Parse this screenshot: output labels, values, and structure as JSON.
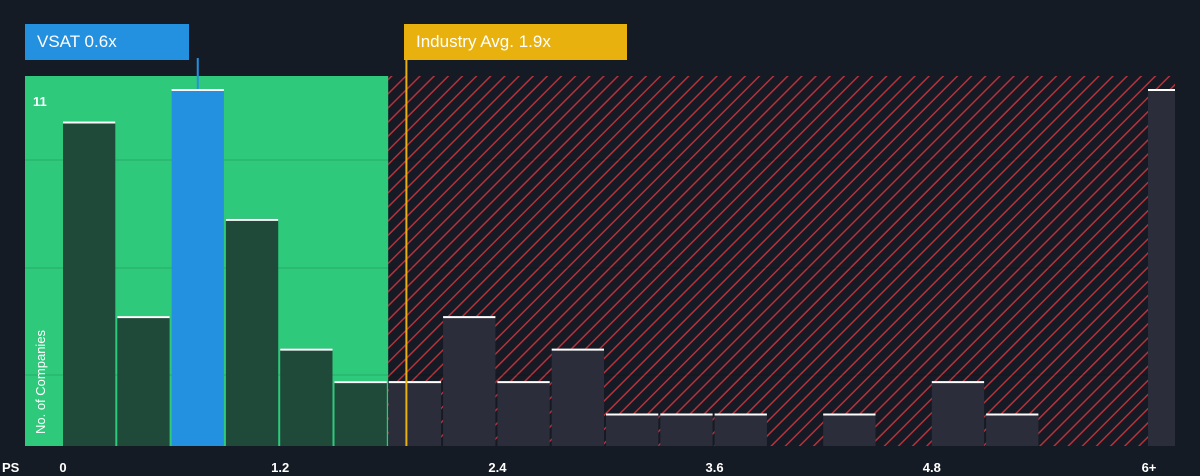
{
  "chart_data": {
    "type": "bar",
    "x_axis_prefix": "PS",
    "x_ticks": [
      "0",
      "1.2",
      "2.4",
      "3.6",
      "4.8",
      "6+"
    ],
    "x_tick_values": [
      0,
      1.2,
      2.4,
      3.6,
      4.8,
      6
    ],
    "ylabel": "No. of Companies",
    "y_max_label": "11",
    "ylim": [
      0,
      11
    ],
    "bin_width": 0.3,
    "bins": [
      {
        "x_start": 0.0,
        "value": 10,
        "highlight": false
      },
      {
        "x_start": 0.3,
        "value": 4,
        "highlight": false
      },
      {
        "x_start": 0.6,
        "value": 11,
        "highlight": true
      },
      {
        "x_start": 0.9,
        "value": 7,
        "highlight": false
      },
      {
        "x_start": 1.2,
        "value": 3,
        "highlight": false
      },
      {
        "x_start": 1.5,
        "value": 2,
        "highlight": false
      },
      {
        "x_start": 1.8,
        "value": 2,
        "highlight": false
      },
      {
        "x_start": 2.1,
        "value": 4,
        "highlight": false
      },
      {
        "x_start": 2.4,
        "value": 2,
        "highlight": false
      },
      {
        "x_start": 2.7,
        "value": 3,
        "highlight": false
      },
      {
        "x_start": 3.0,
        "value": 1,
        "highlight": false
      },
      {
        "x_start": 3.3,
        "value": 1,
        "highlight": false
      },
      {
        "x_start": 3.6,
        "value": 1,
        "highlight": false
      },
      {
        "x_start": 4.2,
        "value": 1,
        "highlight": false
      },
      {
        "x_start": 4.8,
        "value": 2,
        "highlight": false
      },
      {
        "x_start": 5.1,
        "value": 1,
        "highlight": false
      },
      {
        "x_start": 6.0,
        "value": 11,
        "highlight": false
      }
    ],
    "company": {
      "label": "VSAT 0.6x",
      "value": 0.6
    },
    "industry_avg": {
      "label": "Industry Avg. 1.9x",
      "value": 1.9
    },
    "good_value_range": [
      0,
      1.8
    ],
    "colors": {
      "background": "#151b24",
      "good_zone": "#2ec97b",
      "overvalued_hatch": "#b5323a",
      "bar": "#1f4a3a",
      "bar_over": "#2b2d3a",
      "highlight_bar": "#2490e0",
      "industry_line": "#e8b10e",
      "bar_top": "#ffffff",
      "text": "#ffffff"
    }
  }
}
